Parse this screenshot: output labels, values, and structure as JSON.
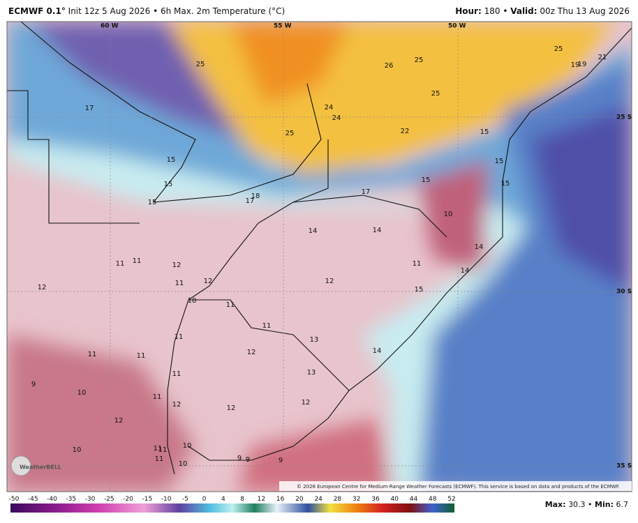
{
  "header": {
    "model": "ECMWF 0.1°",
    "description": "Init 12z 5 Aug 2026 • 6h Max. 2m Temperature (°C)",
    "hour_label": "Hour:",
    "hour": "180",
    "valid_label": "Valid:",
    "valid": "00z Thu 13 Aug 2026"
  },
  "map": {
    "lon_labels": [
      "60 W",
      "55 W",
      "50 W"
    ],
    "lat_labels": [
      "25 S",
      "30 S",
      "35 S"
    ],
    "values": [
      "25",
      "26",
      "25",
      "25",
      "21",
      "19",
      "19",
      "17",
      "25",
      "24",
      "24",
      "25",
      "22",
      "15",
      "15",
      "15",
      "15",
      "15",
      "15",
      "17",
      "18",
      "17",
      "15",
      "10",
      "14",
      "14",
      "14",
      "11",
      "11",
      "12",
      "11",
      "14",
      "12",
      "11",
      "12",
      "15",
      "12",
      "10",
      "11",
      "11",
      "11",
      "13",
      "12",
      "11",
      "11",
      "14",
      "13",
      "11",
      "9",
      "10",
      "11",
      "12",
      "12",
      "12",
      "12",
      "10",
      "10",
      "11",
      "11",
      "11",
      "9",
      "9",
      "9",
      "10"
    ],
    "credit": "© 2026 European Centre for Medium-Range Weather Forecasts (ECMWF). This service is based on data and products of the ECMWF.",
    "logo": "WeatherBELL"
  },
  "colorbar": {
    "ticks": [
      "-50",
      "-45",
      "-40",
      "-35",
      "-30",
      "-25",
      "-20",
      "-15",
      "-10",
      "-5",
      "0",
      "4",
      "8",
      "12",
      "16",
      "20",
      "24",
      "28",
      "32",
      "36",
      "40",
      "44",
      "48",
      "52"
    ]
  },
  "footer": {
    "max_label": "Max:",
    "max": "30.3",
    "min_label": "Min:",
    "min": "6.7"
  }
}
